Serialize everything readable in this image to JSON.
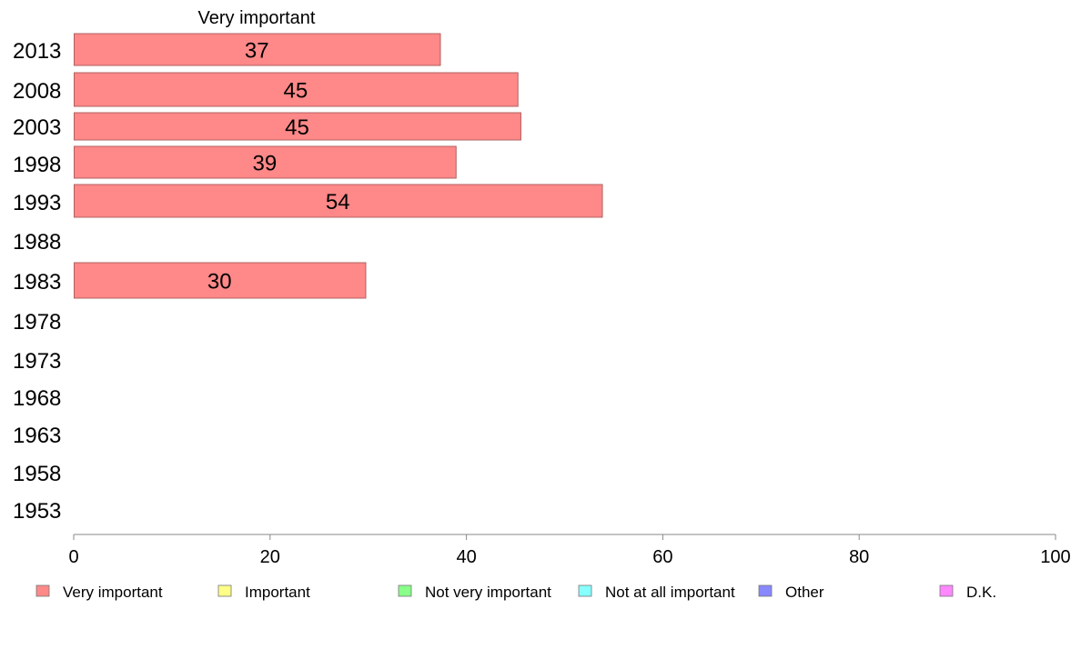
{
  "chart_data": {
    "type": "bar",
    "orientation": "horizontal",
    "series_header": "Very important",
    "categories": [
      "2013",
      "2008",
      "2003",
      "1998",
      "1993",
      "1988",
      "1983",
      "1978",
      "1973",
      "1968",
      "1963",
      "1958",
      "1953"
    ],
    "series": [
      {
        "name": "Very important",
        "values": [
          37.3,
          45.2,
          45.5,
          38.9,
          53.8,
          null,
          29.7,
          null,
          null,
          null,
          null,
          null,
          null
        ],
        "labels": [
          "37",
          "45",
          "45",
          "39",
          "54",
          "",
          "30",
          "",
          "",
          "",
          "",
          "",
          ""
        ]
      }
    ],
    "xlim": [
      0,
      100
    ],
    "xticks": [
      0,
      20,
      40,
      60,
      80,
      100
    ],
    "tick_labels": [
      "0",
      "20",
      "40",
      "60",
      "80",
      "100"
    ],
    "grid": false,
    "legend_position": "bottom",
    "legend": [
      {
        "label": "Very important",
        "color": "#ff8888"
      },
      {
        "label": "Important",
        "color": "#ffff88"
      },
      {
        "label": "Not very important",
        "color": "#88ff88"
      },
      {
        "label": "Not at all important",
        "color": "#88ffff"
      },
      {
        "label": "Other",
        "color": "#8888ff"
      },
      {
        "label": "D.K.",
        "color": "#ff88ff"
      }
    ],
    "colors": {
      "bar_fill": "#ff8888",
      "bar_stroke": "#b06060",
      "axis": "#888888"
    }
  }
}
